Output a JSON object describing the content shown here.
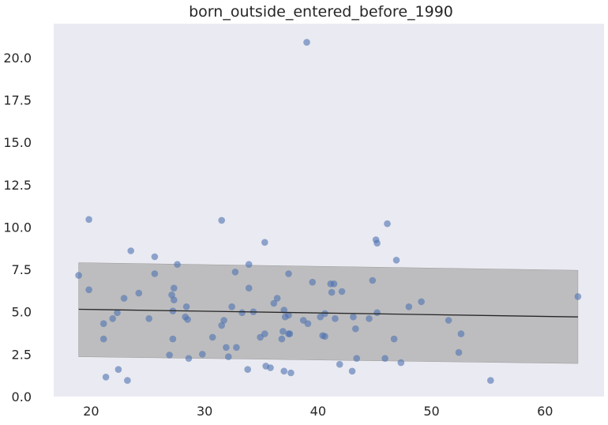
{
  "chart_data": {
    "type": "scatter",
    "title": "born_outside_entered_before_1990",
    "xlabel": "",
    "ylabel": "",
    "xlim": [
      16.7,
      65.2
    ],
    "ylim": [
      0,
      22
    ],
    "xticks": [
      20,
      30,
      40,
      50,
      60
    ],
    "yticks": [
      0.0,
      2.5,
      5.0,
      7.5,
      10.0,
      12.5,
      15.0,
      17.5,
      20.0
    ],
    "xtick_labels": [
      "20",
      "30",
      "40",
      "50",
      "60"
    ],
    "ytick_labels": [
      "0.0",
      "2.5",
      "5.0",
      "7.5",
      "10.0",
      "12.5",
      "15.0",
      "17.5",
      "20.0"
    ],
    "grid": false,
    "background": "#eaeaf2",
    "point_color": "#4c72b0",
    "band_color": "#a9a9a9",
    "line_color": "#262626",
    "regression": {
      "x": [
        18.9,
        62.9
      ],
      "y": [
        5.15,
        4.7
      ]
    },
    "band": {
      "x": [
        18.9,
        62.9
      ],
      "upper": [
        7.9,
        7.45
      ],
      "lower": [
        2.35,
        1.95
      ]
    },
    "points": [
      [
        18.9,
        7.15
      ],
      [
        19.8,
        10.45
      ],
      [
        19.8,
        6.3
      ],
      [
        21.1,
        3.4
      ],
      [
        21.1,
        4.3
      ],
      [
        21.3,
        1.15
      ],
      [
        21.9,
        4.6
      ],
      [
        22.3,
        4.95
      ],
      [
        22.4,
        1.6
      ],
      [
        22.9,
        5.8
      ],
      [
        23.2,
        0.95
      ],
      [
        23.5,
        8.6
      ],
      [
        24.2,
        6.1
      ],
      [
        25.1,
        4.6
      ],
      [
        25.6,
        8.25
      ],
      [
        25.6,
        7.25
      ],
      [
        26.9,
        2.45
      ],
      [
        27.1,
        6.0
      ],
      [
        27.2,
        5.05
      ],
      [
        27.2,
        3.4
      ],
      [
        27.3,
        6.4
      ],
      [
        27.3,
        5.7
      ],
      [
        27.6,
        7.8
      ],
      [
        28.3,
        4.7
      ],
      [
        28.4,
        5.3
      ],
      [
        28.5,
        4.55
      ],
      [
        28.6,
        2.25
      ],
      [
        29.8,
        2.5
      ],
      [
        30.7,
        3.5
      ],
      [
        31.5,
        10.4
      ],
      [
        31.5,
        4.2
      ],
      [
        31.7,
        4.5
      ],
      [
        31.9,
        2.9
      ],
      [
        32.1,
        2.35
      ],
      [
        32.4,
        5.3
      ],
      [
        32.7,
        7.35
      ],
      [
        32.8,
        2.9
      ],
      [
        33.3,
        4.95
      ],
      [
        33.8,
        1.6
      ],
      [
        33.9,
        6.4
      ],
      [
        33.9,
        7.8
      ],
      [
        34.3,
        5.0
      ],
      [
        34.9,
        3.5
      ],
      [
        35.3,
        9.1
      ],
      [
        35.3,
        3.7
      ],
      [
        35.4,
        1.8
      ],
      [
        35.8,
        1.7
      ],
      [
        36.1,
        5.5
      ],
      [
        36.4,
        5.8
      ],
      [
        36.8,
        3.4
      ],
      [
        36.9,
        3.85
      ],
      [
        37.0,
        1.5
      ],
      [
        37.0,
        5.1
      ],
      [
        37.1,
        4.7
      ],
      [
        37.4,
        4.8
      ],
      [
        37.4,
        7.25
      ],
      [
        37.4,
        3.7
      ],
      [
        37.5,
        3.7
      ],
      [
        37.6,
        1.4
      ],
      [
        38.7,
        4.5
      ],
      [
        39.0,
        20.9
      ],
      [
        39.1,
        4.3
      ],
      [
        39.5,
        6.75
      ],
      [
        40.2,
        4.7
      ],
      [
        40.4,
        3.6
      ],
      [
        40.6,
        3.55
      ],
      [
        40.6,
        4.9
      ],
      [
        41.1,
        6.65
      ],
      [
        41.2,
        6.15
      ],
      [
        41.4,
        6.65
      ],
      [
        41.5,
        4.6
      ],
      [
        41.9,
        1.9
      ],
      [
        42.1,
        6.2
      ],
      [
        43.0,
        1.5
      ],
      [
        43.1,
        4.7
      ],
      [
        43.3,
        4.0
      ],
      [
        43.4,
        2.25
      ],
      [
        44.5,
        4.6
      ],
      [
        44.8,
        6.85
      ],
      [
        45.1,
        9.25
      ],
      [
        45.2,
        9.05
      ],
      [
        45.2,
        4.95
      ],
      [
        45.9,
        2.25
      ],
      [
        46.1,
        10.2
      ],
      [
        46.7,
        3.4
      ],
      [
        46.9,
        8.05
      ],
      [
        47.3,
        2.0
      ],
      [
        48.0,
        5.3
      ],
      [
        49.1,
        5.6
      ],
      [
        51.5,
        4.5
      ],
      [
        52.4,
        2.6
      ],
      [
        52.6,
        3.7
      ],
      [
        55.2,
        0.95
      ],
      [
        62.9,
        5.9
      ]
    ]
  }
}
